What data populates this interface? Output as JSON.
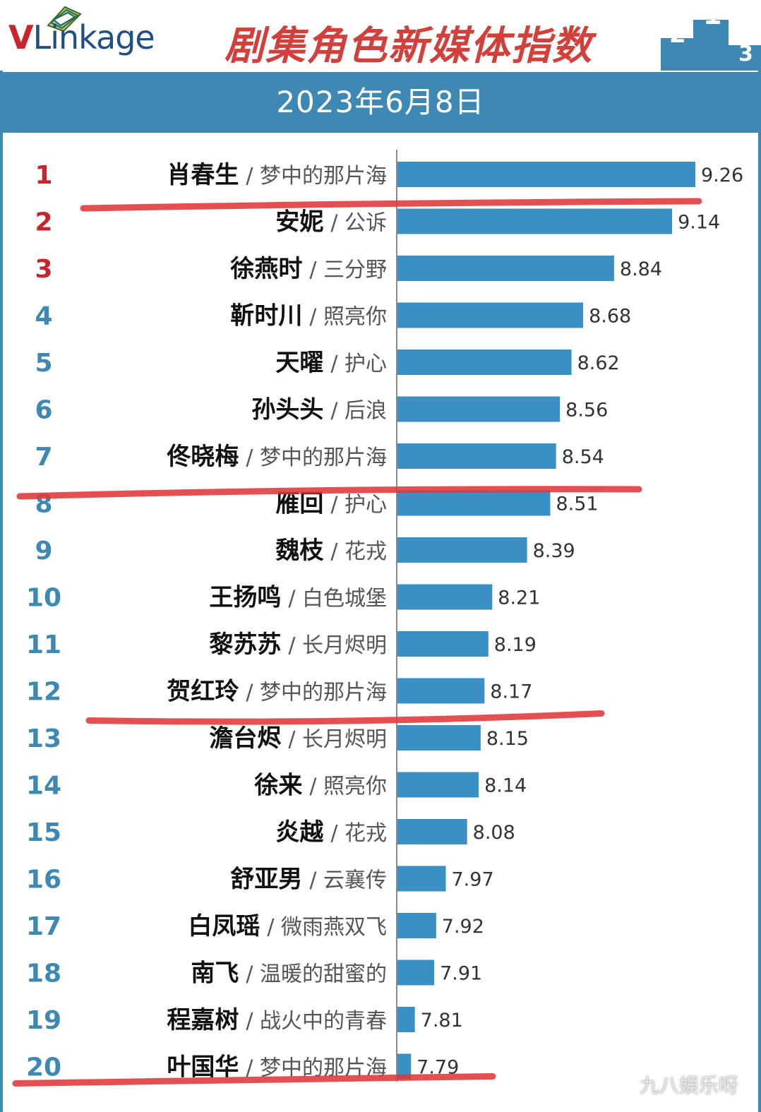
{
  "header": {
    "logo_text_v": "V",
    "logo_text_rest": "Linkage",
    "title": "剧集角色新媒体指数",
    "date": "2023年6月8日"
  },
  "colors": {
    "bar": "#3a8fc4",
    "band": "#3e89b4",
    "title": "#d2403b",
    "rank_top": "#c8242b",
    "rank_rest": "#3e89b4",
    "annotation": "#e0383a"
  },
  "icons": {
    "logo": "stacked-pages-icon",
    "podium": "podium-icon"
  },
  "watermark": "九八娱乐呀",
  "chart_data": {
    "type": "bar",
    "orientation": "horizontal",
    "title": "剧集角色新媒体指数",
    "subtitle": "2023年6月8日",
    "xlabel": "",
    "ylabel": "",
    "xlim": [
      7.72,
      9.26
    ],
    "categories": [
      {
        "rank": "1",
        "name": "肖春生",
        "show": "梦中的那片海"
      },
      {
        "rank": "2",
        "name": "安妮",
        "show": "公诉"
      },
      {
        "rank": "3",
        "name": "徐燕时",
        "show": "三分野"
      },
      {
        "rank": "4",
        "name": "靳时川",
        "show": "照亮你"
      },
      {
        "rank": "5",
        "name": "天曜",
        "show": "护心"
      },
      {
        "rank": "6",
        "name": "孙头头",
        "show": "后浪"
      },
      {
        "rank": "7",
        "name": "佟晓梅",
        "show": "梦中的那片海"
      },
      {
        "rank": "8",
        "name": "雁回",
        "show": "护心"
      },
      {
        "rank": "9",
        "name": "魏枝",
        "show": "花戎"
      },
      {
        "rank": "10",
        "name": "王扬鸣",
        "show": "白色城堡"
      },
      {
        "rank": "11",
        "name": "黎苏苏",
        "show": "长月烬明"
      },
      {
        "rank": "12",
        "name": "贺红玲",
        "show": "梦中的那片海"
      },
      {
        "rank": "13",
        "name": "澹台烬",
        "show": "长月烬明"
      },
      {
        "rank": "14",
        "name": "徐来",
        "show": "照亮你"
      },
      {
        "rank": "15",
        "name": "炎越",
        "show": "花戎"
      },
      {
        "rank": "16",
        "name": "舒亚男",
        "show": "云襄传"
      },
      {
        "rank": "17",
        "name": "白凤瑶",
        "show": "微雨燕双飞"
      },
      {
        "rank": "18",
        "name": "南飞",
        "show": "温暖的甜蜜的"
      },
      {
        "rank": "19",
        "name": "程嘉树",
        "show": "战火中的青春"
      },
      {
        "rank": "20",
        "name": "叶国华",
        "show": "梦中的那片海"
      }
    ],
    "values": [
      9.26,
      9.14,
      8.84,
      8.68,
      8.62,
      8.56,
      8.54,
      8.51,
      8.39,
      8.21,
      8.19,
      8.17,
      8.15,
      8.14,
      8.08,
      7.97,
      7.92,
      7.91,
      7.81,
      7.79
    ],
    "value_labels": [
      "9.26",
      "9.14",
      "8.84",
      "8.68",
      "8.62",
      "8.56",
      "8.54",
      "8.51",
      "8.39",
      "8.21",
      "8.19",
      "8.17",
      "8.15",
      "8.14",
      "8.08",
      "7.97",
      "7.92",
      "7.91",
      "7.81",
      "7.79"
    ],
    "grid": false,
    "legend": "none",
    "annotations": {
      "type": "red-underline-strokes",
      "underlined_ranks": [
        "1",
        "7",
        "12",
        "20"
      ]
    }
  }
}
